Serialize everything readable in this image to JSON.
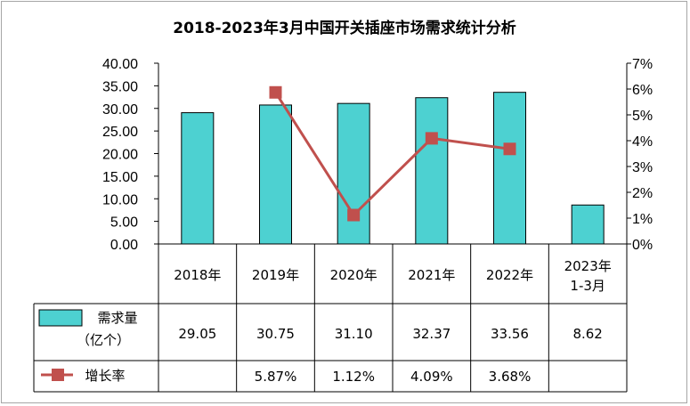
{
  "chart_data": {
    "type": "bar",
    "title": "2018-2023年3月中国开关插座市场需求统计分析",
    "categories": [
      "2018年",
      "2019年",
      "2020年",
      "2021年",
      "2022年",
      "2023年\n1-3月"
    ],
    "categories_lines": [
      [
        "2018年"
      ],
      [
        "2019年"
      ],
      [
        "2020年"
      ],
      [
        "2021年"
      ],
      [
        "2022年"
      ],
      [
        "2023年",
        "1-3月"
      ]
    ],
    "y_left": {
      "ylim": [
        0,
        40
      ],
      "ticks": [
        "0.00",
        "5.00",
        "10.00",
        "15.00",
        "20.00",
        "25.00",
        "30.00",
        "35.00",
        "40.00"
      ]
    },
    "y_right": {
      "ylim": [
        0,
        7
      ],
      "ticks": [
        "0%",
        "1%",
        "2%",
        "3%",
        "4%",
        "5%",
        "6%",
        "7%"
      ]
    },
    "series": [
      {
        "name": "需求量（亿个）",
        "name_lines": [
          "需求量",
          "（亿个）"
        ],
        "kind": "bar",
        "axis": "left",
        "color": "#4dd1d1",
        "values": [
          29.05,
          30.75,
          31.1,
          32.37,
          33.56,
          8.62
        ],
        "labels": [
          "29.05",
          "30.75",
          "31.10",
          "32.37",
          "33.56",
          "8.62"
        ]
      },
      {
        "name": "增长率",
        "kind": "line",
        "axis": "right",
        "color": "#c0504d",
        "values": [
          null,
          5.87,
          1.12,
          4.09,
          3.68,
          null
        ],
        "labels": [
          "",
          "5.87%",
          "1.12%",
          "4.09%",
          "3.68%",
          ""
        ]
      }
    ],
    "legend": "bottom-table",
    "grid": false
  }
}
